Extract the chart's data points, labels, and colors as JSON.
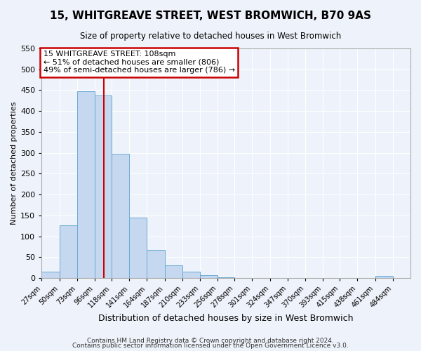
{
  "title": "15, WHITGREAVE STREET, WEST BROMWICH, B70 9AS",
  "subtitle": "Size of property relative to detached houses in West Bromwich",
  "xlabel": "Distribution of detached houses by size in West Bromwich",
  "ylabel": "Number of detached properties",
  "bin_edges": [
    27,
    50,
    73,
    96,
    118,
    141,
    164,
    187,
    210,
    233,
    256,
    278,
    301,
    324,
    347,
    370,
    393,
    415,
    438,
    461,
    484,
    507
  ],
  "bin_labels": [
    "27sqm",
    "50sqm",
    "73sqm",
    "96sqm",
    "118sqm",
    "141sqm",
    "164sqm",
    "187sqm",
    "210sqm",
    "233sqm",
    "256sqm",
    "278sqm",
    "301sqm",
    "324sqm",
    "347sqm",
    "370sqm",
    "393sqm",
    "415sqm",
    "438sqm",
    "461sqm",
    "484sqm"
  ],
  "counts": [
    15,
    127,
    447,
    437,
    297,
    145,
    68,
    30,
    15,
    7,
    2,
    1,
    0,
    0,
    0,
    0,
    0,
    0,
    0,
    5,
    0
  ],
  "bar_color": "#c5d8f0",
  "bar_edge_color": "#6aaad4",
  "property_size": 108,
  "red_line_x": 108,
  "annotation_title": "15 WHITGREAVE STREET: 108sqm",
  "annotation_line1": "← 51% of detached houses are smaller (806)",
  "annotation_line2": "49% of semi-detached houses are larger (786) →",
  "annotation_box_color": "#ffffff",
  "annotation_box_edge": "#cc0000",
  "red_line_color": "#cc0000",
  "ylim": [
    0,
    550
  ],
  "yticks": [
    0,
    50,
    100,
    150,
    200,
    250,
    300,
    350,
    400,
    450,
    500,
    550
  ],
  "footer1": "Contains HM Land Registry data © Crown copyright and database right 2024.",
  "footer2": "Contains public sector information licensed under the Open Government Licence v3.0.",
  "bg_color": "#eef2fa",
  "plot_bg_color": "#eef2fa",
  "grid_color": "#ffffff"
}
